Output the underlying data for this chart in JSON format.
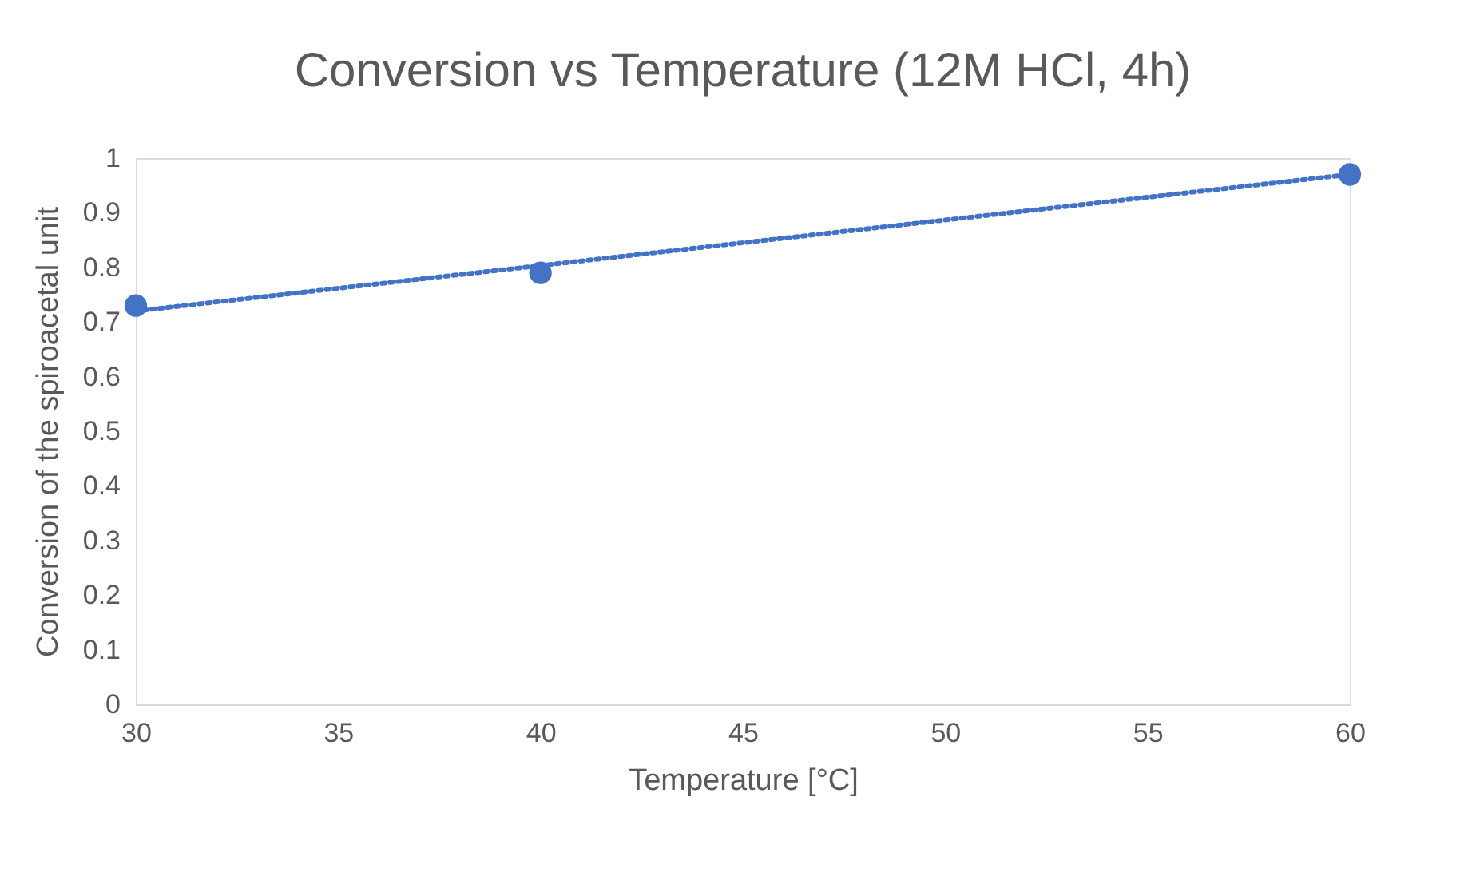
{
  "chart_data": {
    "type": "scatter",
    "title": "Conversion vs Temperature (12M HCl, 4h)",
    "xlabel": "Temperature [°C]",
    "ylabel": "Conversion of the spiroacetal unit",
    "xlim": [
      30,
      60
    ],
    "xticks": [
      30,
      35,
      40,
      45,
      50,
      55,
      60
    ],
    "ylim": [
      0,
      1
    ],
    "yticks": [
      0,
      0.1,
      0.2,
      0.3,
      0.4,
      0.5,
      0.6,
      0.7,
      0.8,
      0.9,
      1
    ],
    "grid": false,
    "series": [
      {
        "color": "#4472c4",
        "marker": "circle",
        "x": [
          30,
          40,
          60
        ],
        "values": [
          0.73,
          0.79,
          0.97
        ]
      },
      {
        "type": "line",
        "color": "#4472c4",
        "marker": "none",
        "line_style": "dotted",
        "x": [
          30,
          60
        ],
        "values": [
          0.72,
          0.97
        ]
      }
    ]
  }
}
